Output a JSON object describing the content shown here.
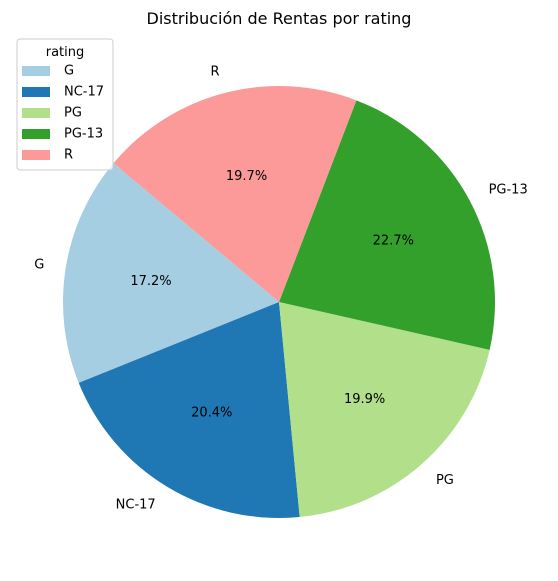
{
  "chart_data": {
    "type": "pie",
    "title": "Distribución de Rentas por rating",
    "legend": {
      "title": "rating",
      "placement": "top-left"
    },
    "categories": [
      "G",
      "NC-17",
      "PG",
      "PG-13",
      "R"
    ],
    "values": [
      17.2,
      20.4,
      19.9,
      22.7,
      19.7
    ],
    "value_labels": [
      "17.2%",
      "20.4%",
      "19.9%",
      "22.7%",
      "19.7%"
    ],
    "colors": [
      "#a6cee3",
      "#1f78b4",
      "#b2df8a",
      "#33a02c",
      "#fb9a99"
    ],
    "start_angle_deg": 140,
    "direction": "counterclockwise"
  }
}
